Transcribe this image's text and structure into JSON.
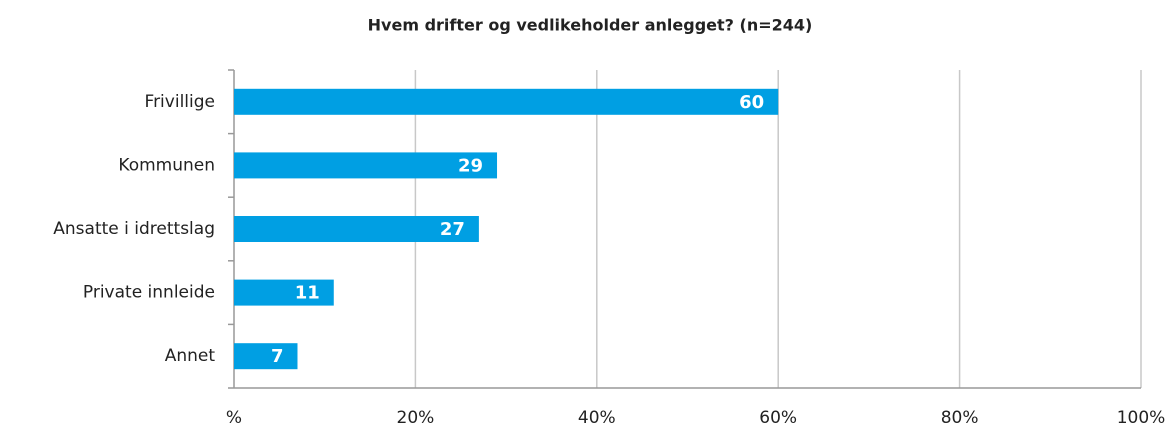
{
  "chart_data": {
    "type": "bar",
    "orientation": "horizontal",
    "title": "Hvem drifter og vedlikeholder anlegget? (n=244)",
    "categories": [
      "Frivillige",
      "Kommunen",
      "Ansatte i idrettslag",
      "Private innleide",
      "Annet"
    ],
    "values": [
      60,
      29,
      27,
      11,
      7
    ],
    "color": "#009fe3",
    "xlim": [
      0,
      100
    ],
    "xticks": [
      {
        "value": 0,
        "label": "%"
      },
      {
        "value": 20,
        "label": "20%"
      },
      {
        "value": 40,
        "label": "40%"
      },
      {
        "value": 60,
        "label": "60%"
      },
      {
        "value": 80,
        "label": "80%"
      },
      {
        "value": 100,
        "label": "100%"
      }
    ],
    "grid": true
  }
}
